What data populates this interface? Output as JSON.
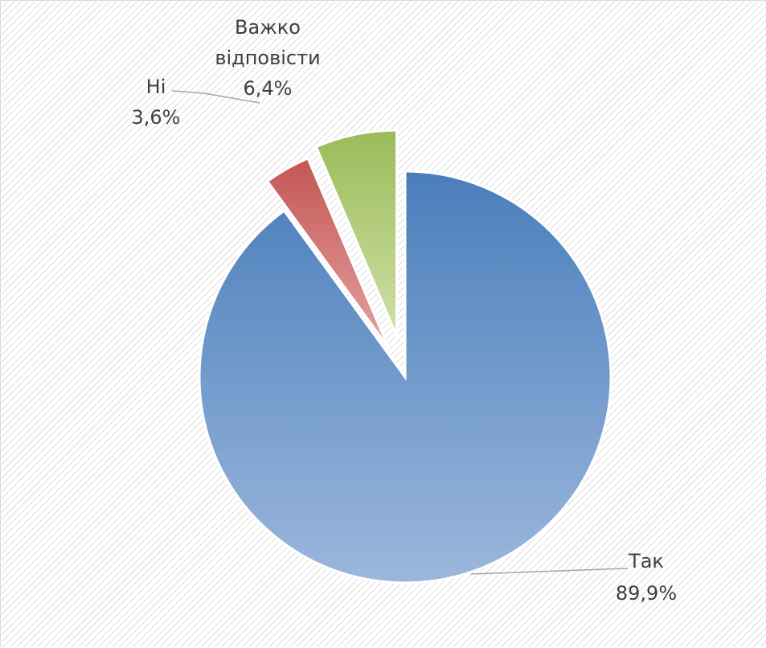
{
  "chart_data": {
    "type": "pie",
    "title": "",
    "exploded": true,
    "background": "diagonal-hatch",
    "slices": [
      {
        "label": "Так",
        "value": 89.9,
        "value_label": "89,9%",
        "color_top": "#4a7ebb",
        "color_bottom": "#9bb7dc"
      },
      {
        "label": "Ні",
        "value": 3.6,
        "value_label": "3,6%",
        "color_top": "#c0504d",
        "color_bottom": "#e6a2a1"
      },
      {
        "label": "Важко відповісти",
        "value": 6.4,
        "value_label": "6,4%",
        "color_top": "#9bbb59",
        "color_bottom": "#cfe0a6"
      }
    ],
    "data_labels": [
      {
        "lines": [
          "Так",
          "89,9%"
        ]
      },
      {
        "lines": [
          "Ні",
          "3,6%"
        ]
      },
      {
        "lines": [
          "Важко",
          "відповісти",
          "6,4%"
        ]
      }
    ]
  }
}
